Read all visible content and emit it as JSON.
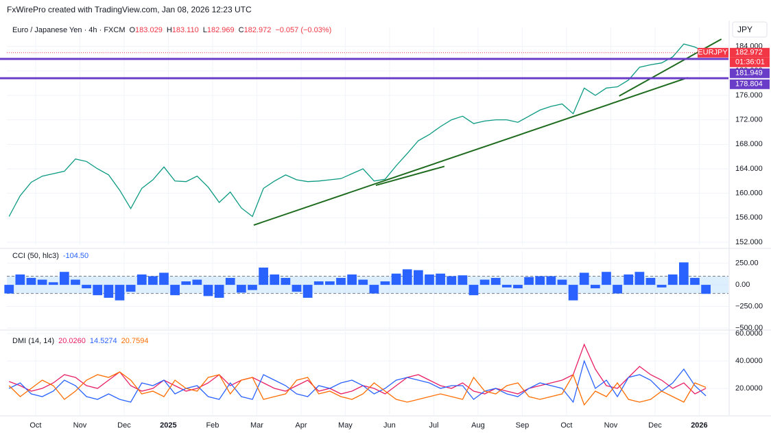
{
  "header": {
    "text": "FxWirePro created with TradingView.com, Jan 08, 2026 12:23 UTC"
  },
  "chart_data": [
    {
      "type": "line",
      "title": "Euro / Japanese Yen · 4h · FXCM",
      "ohlc": [
        {
          "label": "O",
          "value": "183.029"
        },
        {
          "label": "H",
          "value": "183.110"
        },
        {
          "label": "L",
          "value": "182.969"
        },
        {
          "label": "C",
          "value": "182.972"
        }
      ],
      "change": "−0.057 (−0.03%)",
      "currency": "JPY",
      "countdown": "01:36:01",
      "x": [
        0.4,
        0.65,
        0.9,
        1.15,
        1.4,
        1.65,
        1.9,
        2.15,
        2.4,
        2.65,
        2.9,
        3.15,
        3.4,
        3.65,
        3.9,
        4.15,
        4.4,
        4.65,
        4.9,
        5.15,
        5.4,
        5.65,
        5.9,
        6.15,
        6.4,
        6.65,
        6.9,
        7.15,
        7.4,
        7.65,
        7.9,
        8.15,
        8.4,
        8.65,
        8.9,
        9.15,
        9.4,
        9.65,
        9.9,
        10.15,
        10.4,
        10.65,
        10.9,
        11.15,
        11.4,
        11.65,
        11.9,
        12.15,
        12.4,
        12.65,
        12.9,
        13.15,
        13.4,
        13.65,
        13.9,
        14.15,
        14.4,
        14.65,
        14.9,
        15.15,
        15.4,
        15.65,
        15.9,
        16.15
      ],
      "xlim": [
        0.35,
        16.66
      ],
      "series": [
        {
          "name": "EURJPY",
          "color": "#089981",
          "values": [
            156.2,
            159.6,
            161.8,
            162.8,
            163.2,
            163.6,
            165.6,
            165.2,
            164.0,
            163.0,
            160.5,
            157.5,
            160.8,
            162.2,
            164.3,
            162.0,
            161.9,
            162.8,
            161.0,
            158.5,
            160.2,
            157.6,
            156.2,
            160.8,
            162.0,
            163.0,
            162.2,
            161.9,
            162.0,
            162.2,
            162.4,
            163.2,
            164.0,
            162.0,
            162.3,
            164.5,
            166.5,
            168.6,
            169.6,
            170.9,
            172.0,
            172.6,
            171.4,
            171.8,
            172.0,
            172.0,
            171.6,
            172.6,
            173.6,
            174.2,
            174.6,
            173.0,
            177.2,
            176.0,
            177.2,
            177.4,
            178.5,
            180.6,
            181.0,
            181.3,
            182.3,
            184.4,
            183.9,
            182.972
          ]
        }
      ],
      "ylim": [
        151.55,
        187.1
      ],
      "yticks": [
        {
          "value": 152,
          "label": "152.000"
        },
        {
          "value": 156,
          "label": "156.000"
        },
        {
          "value": 160,
          "label": "160.000"
        },
        {
          "value": 164,
          "label": "164.000"
        },
        {
          "value": 168,
          "label": "168.000"
        },
        {
          "value": 172,
          "label": "172.000"
        },
        {
          "value": 176,
          "label": "176.000"
        },
        {
          "value": 180,
          "label": "180.000"
        },
        {
          "value": 184,
          "label": "184.000"
        }
      ],
      "price_color": "#f23645",
      "levels": [
        {
          "value": 181.949,
          "color": "#6a3dc8"
        },
        {
          "value": 178.804,
          "color": "#6a3dc8"
        }
      ],
      "trendline_color": "#1e6b1e",
      "trendlines": [
        {
          "x": [
            5.93,
            15.74
          ],
          "y": [
            154.8,
            178.9
          ]
        },
        {
          "x": [
            8.69,
            10.24
          ],
          "y": [
            161.3,
            164.4
          ]
        },
        {
          "x": [
            14.19,
            16.5
          ],
          "y": [
            175.9,
            185.2
          ]
        }
      ]
    },
    {
      "type": "bar",
      "title": "CCI (50, hlc3)",
      "series": [
        {
          "color": "#2962ff",
          "legend_value": "-104.50",
          "values": [
            -100,
            120,
            80,
            60,
            30,
            150,
            60,
            -40,
            -120,
            -150,
            -180,
            -80,
            120,
            100,
            140,
            -120,
            40,
            60,
            -130,
            -150,
            80,
            -90,
            -60,
            200,
            120,
            80,
            -80,
            -150,
            40,
            40,
            80,
            120,
            60,
            -100,
            40,
            130,
            180,
            170,
            120,
            130,
            100,
            110,
            -120,
            60,
            80,
            -30,
            -40,
            90,
            100,
            100,
            60,
            -180,
            140,
            -40,
            150,
            -100,
            120,
            150,
            80,
            -30,
            120,
            260,
            80,
            -104.5
          ]
        }
      ],
      "ylim": [
        -516,
        398
      ],
      "band": [
        -100,
        100
      ],
      "band_color": "#bbdefb",
      "yticks": [
        {
          "value": 250,
          "label": "250.00"
        },
        {
          "value": 0,
          "label": "0.00"
        },
        {
          "value": -250,
          "label": "−250.00"
        },
        {
          "value": -500,
          "label": "−500.00"
        }
      ]
    },
    {
      "type": "line",
      "title": "DMI (14, 14)",
      "series": [
        {
          "color": "#e91e63",
          "legend_value": "20.0260",
          "values": [
            25,
            22,
            18,
            20,
            24,
            30,
            28,
            22,
            20,
            26,
            32,
            22,
            18,
            20,
            26,
            22,
            18,
            20,
            24,
            30,
            22,
            26,
            28,
            24,
            20,
            18,
            22,
            26,
            18,
            20,
            16,
            18,
            22,
            20,
            16,
            22,
            28,
            30,
            26,
            22,
            20,
            24,
            18,
            16,
            20,
            18,
            16,
            20,
            22,
            24,
            26,
            30,
            52,
            34,
            22,
            20,
            28,
            36,
            30,
            26,
            20,
            24,
            16,
            20.026
          ]
        },
        {
          "color": "#2962ff",
          "legend_value": "14.5274",
          "values": [
            20,
            24,
            16,
            14,
            18,
            26,
            22,
            14,
            12,
            16,
            12,
            10,
            24,
            22,
            26,
            16,
            20,
            22,
            14,
            12,
            24,
            14,
            12,
            30,
            26,
            22,
            16,
            14,
            22,
            20,
            24,
            26,
            22,
            16,
            20,
            26,
            28,
            26,
            24,
            20,
            22,
            22,
            12,
            18,
            20,
            16,
            14,
            20,
            24,
            22,
            20,
            10,
            40,
            20,
            26,
            14,
            28,
            30,
            26,
            18,
            24,
            34,
            22,
            14.5274
          ]
        },
        {
          "color": "#ff6d00",
          "legend_value": "20.7594",
          "values": [
            22,
            14,
            20,
            26,
            22,
            12,
            18,
            26,
            30,
            28,
            32,
            26,
            16,
            18,
            14,
            26,
            20,
            18,
            28,
            30,
            16,
            26,
            28,
            12,
            14,
            16,
            26,
            28,
            16,
            18,
            14,
            12,
            16,
            24,
            18,
            12,
            10,
            12,
            14,
            16,
            14,
            12,
            28,
            18,
            16,
            22,
            24,
            14,
            12,
            14,
            16,
            30,
            8,
            18,
            14,
            24,
            12,
            10,
            12,
            18,
            14,
            10,
            24,
            20.7594
          ]
        }
      ],
      "ylim": [
        0.5,
        61.5
      ],
      "yticks": [
        {
          "value": 60,
          "label": "60.0000"
        },
        {
          "value": 40,
          "label": "40.0000"
        },
        {
          "value": 20,
          "label": "20.0000"
        }
      ],
      "xticks": [
        {
          "value": 1,
          "label": "Oct"
        },
        {
          "value": 2,
          "label": "Nov"
        },
        {
          "value": 3,
          "label": "Dec"
        },
        {
          "value": 4,
          "label": "2025",
          "bold": true
        },
        {
          "value": 5,
          "label": "Feb"
        },
        {
          "value": 6,
          "label": "Mar"
        },
        {
          "value": 7,
          "label": "Apr"
        },
        {
          "value": 8,
          "label": "May"
        },
        {
          "value": 9,
          "label": "Jun"
        },
        {
          "value": 10,
          "label": "Jul"
        },
        {
          "value": 11,
          "label": "Aug"
        },
        {
          "value": 12,
          "label": "Sep"
        },
        {
          "value": 13,
          "label": "Oct"
        },
        {
          "value": 14,
          "label": "Nov"
        },
        {
          "value": 15,
          "label": "Dec"
        },
        {
          "value": 16,
          "label": "2026",
          "bold": true
        }
      ]
    }
  ]
}
